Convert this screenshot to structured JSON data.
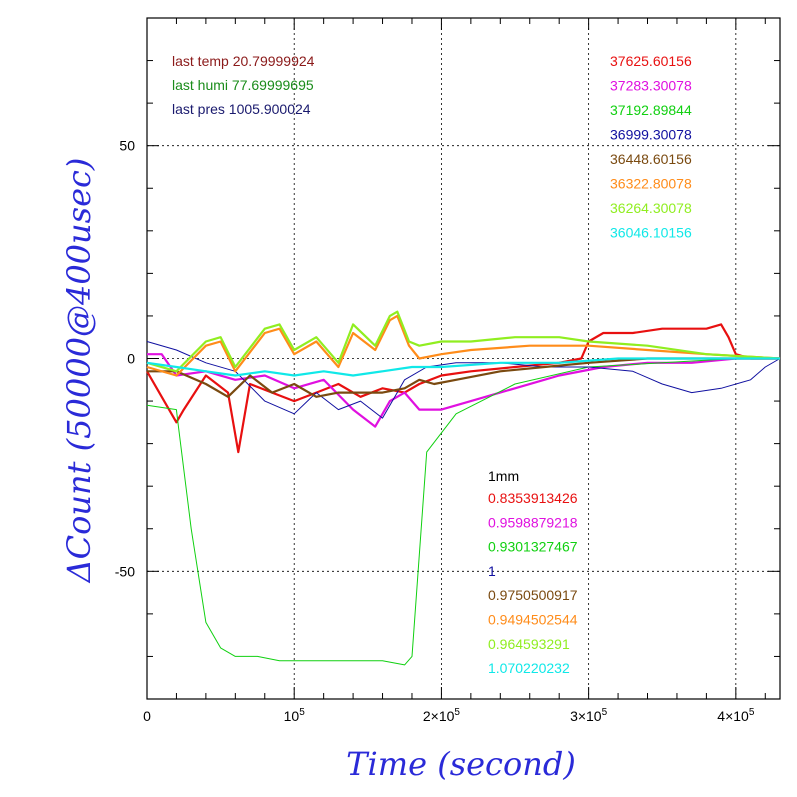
{
  "chart_data": {
    "type": "line",
    "xlabel": "Time (second)",
    "ylabel": "ΔCount (50000@400usec)",
    "xlim": [
      0,
      430000
    ],
    "ylim": [
      -80,
      80
    ],
    "grid": true,
    "x_ticks": [
      {
        "value": 0,
        "label": "0",
        "sup": ""
      },
      {
        "value": 100000,
        "label": "10",
        "sup": "5"
      },
      {
        "value": 200000,
        "label": "2×10",
        "sup": "5"
      },
      {
        "value": 300000,
        "label": "3×10",
        "sup": "5"
      },
      {
        "value": 400000,
        "label": "4×10",
        "sup": "5"
      }
    ],
    "y_ticks": [
      {
        "value": 50,
        "label": "50"
      },
      {
        "value": 0,
        "label": "0"
      },
      {
        "value": -50,
        "label": "-50"
      }
    ],
    "info": [
      {
        "text": "last temp 20.79999924",
        "color": "#8b1a1a"
      },
      {
        "text": "last humi 77.69999695",
        "color": "#1a8c1a"
      },
      {
        "text": "last pres 1005.900024",
        "color": "#1a1a6e"
      }
    ],
    "legend_header": "1mm",
    "series": [
      {
        "name": "37625.60156",
        "factor": "0.8353913426",
        "color": "#e81010",
        "x": [
          0,
          20000,
          25000,
          40000,
          55000,
          62000,
          70000,
          85000,
          100000,
          115000,
          130000,
          145000,
          160000,
          175000,
          185000,
          200000,
          220000,
          250000,
          280000,
          295000,
          300000,
          310000,
          330000,
          350000,
          370000,
          380000,
          390000,
          395000,
          400000,
          410000,
          420000,
          430000
        ],
        "y": [
          -3,
          -15,
          -12,
          -4,
          -8,
          -22,
          -6,
          -8,
          -10,
          -8,
          -6,
          -9,
          -7,
          -8,
          -6,
          -4,
          -3,
          -2,
          -1,
          0,
          4,
          6,
          6,
          7,
          7,
          7,
          8,
          5,
          1,
          0,
          0,
          0
        ]
      },
      {
        "name": "37283.30078",
        "factor": "0.9598879218",
        "color": "#e010e0",
        "x": [
          0,
          10000,
          20000,
          40000,
          60000,
          80000,
          100000,
          120000,
          140000,
          155000,
          165000,
          175000,
          185000,
          200000,
          220000,
          250000,
          280000,
          310000,
          340000,
          370000,
          400000,
          430000
        ],
        "y": [
          1,
          1,
          -4,
          -3,
          -5,
          -4,
          -7,
          -5,
          -12,
          -16,
          -10,
          -8,
          -12,
          -12,
          -10,
          -7,
          -4,
          -2,
          -1,
          -1,
          0,
          0
        ]
      },
      {
        "name": "37192.89844",
        "factor": "0.9301327467",
        "color": "#10d010",
        "x": [
          0,
          20000,
          21000,
          30000,
          40000,
          50000,
          60000,
          75000,
          90000,
          105000,
          120000,
          140000,
          160000,
          175000,
          180000,
          190000,
          210000,
          250000,
          300000,
          350000,
          400000,
          430000
        ],
        "y": [
          -11,
          -12,
          -15,
          -40,
          -62,
          -68,
          -70,
          -70,
          -71,
          -71,
          -71,
          -71,
          -71,
          -72,
          -70,
          -22,
          -13,
          -6,
          -2,
          -1,
          0,
          0
        ]
      },
      {
        "name": "36999.30078",
        "factor": "1",
        "color": "#1010a0",
        "x": [
          0,
          20000,
          40000,
          60000,
          80000,
          100000,
          115000,
          130000,
          145000,
          160000,
          175000,
          190000,
          210000,
          240000,
          270000,
          300000,
          330000,
          350000,
          370000,
          390000,
          410000,
          420000,
          430000
        ],
        "y": [
          4,
          2,
          -1,
          -3,
          -10,
          -13,
          -8,
          -12,
          -10,
          -14,
          -5,
          -2,
          -1,
          -1,
          -2,
          -2,
          -3,
          -6,
          -8,
          -7,
          -5,
          -2,
          0
        ]
      },
      {
        "name": "36448.60156",
        "factor": "0.9750500917",
        "color": "#7a4a10",
        "x": [
          0,
          20000,
          40000,
          55000,
          70000,
          85000,
          100000,
          115000,
          130000,
          145000,
          160000,
          175000,
          185000,
          195000,
          210000,
          240000,
          270000,
          300000,
          340000,
          380000,
          430000
        ],
        "y": [
          -3,
          -3,
          -6,
          -9,
          -4,
          -8,
          -6,
          -9,
          -8,
          -8,
          -8,
          -7,
          -5,
          -6,
          -5,
          -3,
          -2,
          -1,
          0,
          0,
          0
        ]
      },
      {
        "name": "36322.80078",
        "factor": "0.9494502544",
        "color": "#ff8c1a",
        "x": [
          0,
          20000,
          40000,
          50000,
          60000,
          80000,
          90000,
          100000,
          115000,
          130000,
          140000,
          155000,
          165000,
          170000,
          178000,
          185000,
          200000,
          220000,
          260000,
          300000,
          340000,
          380000,
          430000
        ],
        "y": [
          -2,
          -4,
          3,
          4,
          -3,
          6,
          7,
          1,
          4,
          -2,
          6,
          2,
          9,
          10,
          3,
          0,
          1,
          2,
          3,
          3,
          2,
          1,
          0
        ]
      },
      {
        "name": "36264.30078",
        "factor": "0.964593291",
        "color": "#90ee20",
        "x": [
          0,
          20000,
          40000,
          50000,
          60000,
          80000,
          90000,
          100000,
          115000,
          130000,
          140000,
          155000,
          165000,
          170000,
          178000,
          185000,
          200000,
          220000,
          250000,
          280000,
          300000,
          340000,
          380000,
          430000
        ],
        "y": [
          -1,
          -3,
          4,
          5,
          -2,
          7,
          8,
          2,
          5,
          -1,
          8,
          3,
          10,
          11,
          4,
          3,
          4,
          4,
          5,
          5,
          4,
          3,
          1,
          0
        ]
      },
      {
        "name": "36046.10156",
        "factor": "1.070220232",
        "color": "#10e8e8",
        "x": [
          0,
          20000,
          40000,
          60000,
          80000,
          100000,
          120000,
          140000,
          160000,
          180000,
          200000,
          240000,
          280000,
          320000,
          360000,
          400000,
          430000
        ],
        "y": [
          -1,
          -2,
          -3,
          -4,
          -3,
          -4,
          -3,
          -4,
          -3,
          -2,
          -2,
          -1,
          -1,
          0,
          0,
          0,
          0
        ]
      }
    ]
  }
}
